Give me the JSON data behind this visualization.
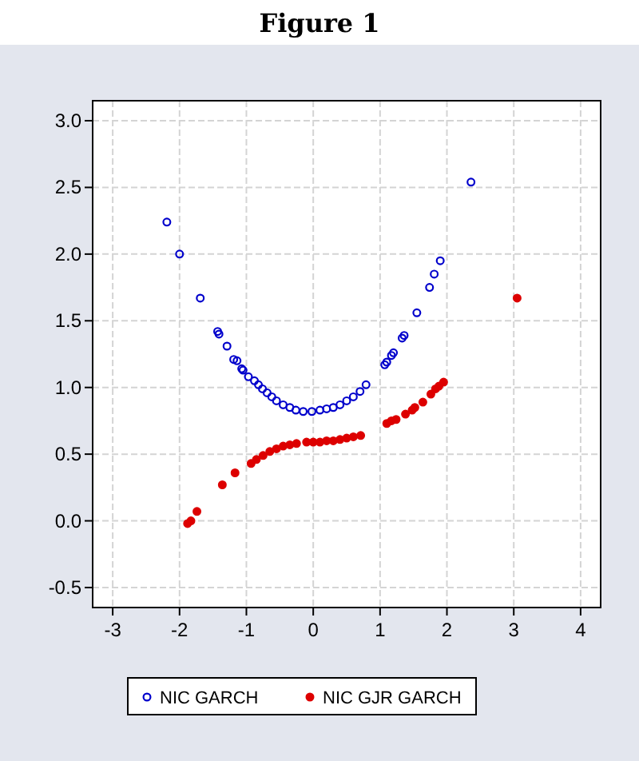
{
  "chart_data": {
    "type": "scatter",
    "title": "Figure 1",
    "xlim": [
      -3.3,
      4.3
    ],
    "ylim": [
      -0.65,
      3.15
    ],
    "xticks": [
      -3,
      -2,
      -1,
      0,
      1,
      2,
      3,
      4
    ],
    "yticks": [
      {
        "value": -0.5,
        "label": "-0.5"
      },
      {
        "value": 0,
        "label": "0.0"
      },
      {
        "value": 0.5,
        "label": "0.5"
      },
      {
        "value": 1,
        "label": "1.0"
      },
      {
        "value": 1.5,
        "label": "1.5"
      },
      {
        "value": 2,
        "label": "2.0"
      },
      {
        "value": 2.5,
        "label": "2.5"
      },
      {
        "value": 3,
        "label": "3.0"
      }
    ],
    "grid": true,
    "legend": "bottom",
    "marker": "circle",
    "series": [
      {
        "name": "NIC GARCH",
        "color": "#0000cc",
        "x": [
          -2.19,
          -2.0,
          -1.69,
          -1.43,
          -1.41,
          -1.29,
          -1.19,
          -1.14,
          -1.07,
          -1.05,
          -0.97,
          -0.88,
          -0.82,
          -0.76,
          -0.69,
          -0.62,
          -0.55,
          -0.45,
          -0.35,
          -0.26,
          -0.15,
          -0.02,
          0.1,
          0.2,
          0.3,
          0.4,
          0.5,
          0.6,
          0.7,
          0.79,
          1.07,
          1.1,
          1.17,
          1.2,
          1.33,
          1.36,
          1.55,
          1.74,
          1.81,
          1.9,
          2.36
        ],
        "values": [
          2.24,
          2.0,
          1.67,
          1.42,
          1.4,
          1.31,
          1.21,
          1.2,
          1.14,
          1.13,
          1.08,
          1.05,
          1.02,
          0.99,
          0.96,
          0.93,
          0.9,
          0.87,
          0.85,
          0.83,
          0.82,
          0.82,
          0.83,
          0.84,
          0.85,
          0.87,
          0.9,
          0.93,
          0.97,
          1.02,
          1.17,
          1.19,
          1.24,
          1.26,
          1.37,
          1.39,
          1.56,
          1.75,
          1.85,
          1.95,
          2.54
        ]
      },
      {
        "name": "NIC GJR GARCH",
        "color": "#dd0000",
        "x": [
          -1.88,
          -1.83,
          -1.74,
          -1.36,
          -1.17,
          -0.93,
          -0.85,
          -0.75,
          -0.65,
          -0.55,
          -0.45,
          -0.35,
          -0.25,
          -0.1,
          0,
          0.1,
          0.2,
          0.3,
          0.4,
          0.5,
          0.6,
          0.71,
          1.1,
          1.17,
          1.24,
          1.38,
          1.48,
          1.52,
          1.64,
          1.76,
          1.83,
          1.88,
          1.95,
          3.05
        ],
        "values": [
          -0.02,
          0.0,
          0.07,
          0.27,
          0.36,
          0.43,
          0.46,
          0.49,
          0.52,
          0.54,
          0.56,
          0.57,
          0.58,
          0.59,
          0.59,
          0.59,
          0.6,
          0.6,
          0.61,
          0.62,
          0.63,
          0.64,
          0.73,
          0.75,
          0.76,
          0.8,
          0.83,
          0.85,
          0.89,
          0.95,
          0.99,
          1.01,
          1.04,
          1.67
        ]
      }
    ]
  }
}
